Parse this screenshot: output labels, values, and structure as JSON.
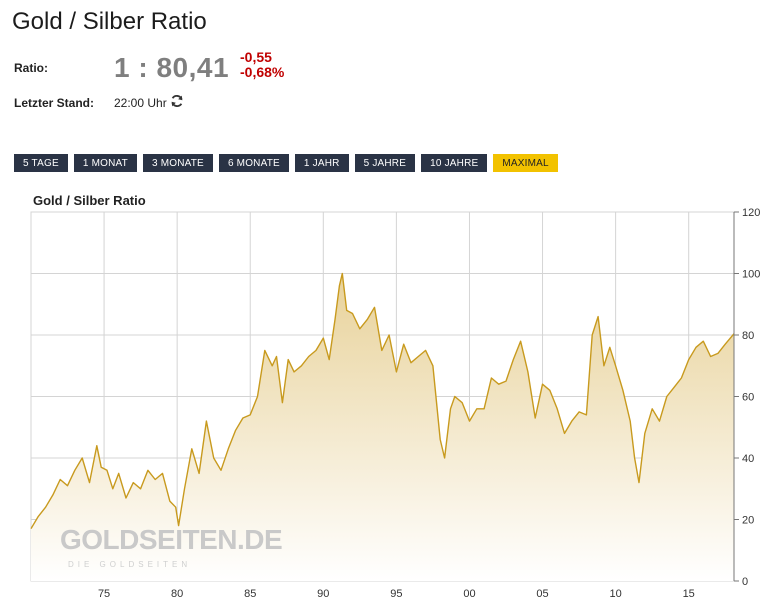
{
  "page": {
    "title": "Gold / Silber Ratio"
  },
  "quote": {
    "ratio_label": "Ratio:",
    "ratio_value": "1 : 80,41",
    "change_abs": "-0,55",
    "change_pct": "-0,68%",
    "stand_label": "Letzter Stand:",
    "stand_value": "22:00 Uhr"
  },
  "ranges": [
    {
      "label": "5 TAGE",
      "active": false
    },
    {
      "label": "1 MONAT",
      "active": false
    },
    {
      "label": "3 MONATE",
      "active": false
    },
    {
      "label": "6 MONATE",
      "active": false
    },
    {
      "label": "1 JAHR",
      "active": false
    },
    {
      "label": "5 JAHRE",
      "active": false
    },
    {
      "label": "10 JAHRE",
      "active": false
    },
    {
      "label": "MAXIMAL",
      "active": true
    }
  ],
  "colors": {
    "line": "#c89a1e",
    "fill_top": "#e8d29a",
    "fill_bottom": "#ffffff",
    "grid": "#d4d4d4",
    "button_bg": "#2a3345",
    "button_active": "#f2c200",
    "negative": "#c00000"
  },
  "watermark": {
    "brand": "GOLDSEITEN.DE",
    "tagline": "DIE GOLDSEITEN"
  },
  "chart_data": {
    "type": "area",
    "title": "Gold / Silber Ratio",
    "xlabel": "",
    "ylabel": "",
    "x_tick_labels": [
      "75",
      "80",
      "85",
      "90",
      "95",
      "00",
      "05",
      "10",
      "15"
    ],
    "x_tick_years": [
      1975,
      1980,
      1985,
      1990,
      1995,
      2000,
      2005,
      2010,
      2015
    ],
    "y_ticks": [
      0,
      20,
      40,
      60,
      80,
      100,
      120
    ],
    "xlim": [
      1970,
      2018.1
    ],
    "ylim": [
      0,
      120
    ],
    "grid": true,
    "y_axis_side": "right",
    "series": [
      {
        "x": [
          1970.0,
          1970.5,
          1971.0,
          1971.5,
          1972.0,
          1972.5,
          1973.0,
          1973.5,
          1974.0,
          1974.5,
          1974.8,
          1975.2,
          1975.6,
          1976.0,
          1976.5,
          1977.0,
          1977.5,
          1978.0,
          1978.5,
          1979.0,
          1979.5,
          1979.9,
          1980.1,
          1980.5,
          1981.0,
          1981.5,
          1982.0,
          1982.5,
          1983.0,
          1983.5,
          1984.0,
          1984.5,
          1985.0,
          1985.5,
          1986.0,
          1986.5,
          1986.8,
          1987.2,
          1987.6,
          1988.0,
          1988.5,
          1989.0,
          1989.5,
          1990.0,
          1990.4,
          1990.8,
          1991.1,
          1991.3,
          1991.6,
          1992.0,
          1992.5,
          1993.0,
          1993.5,
          1994.0,
          1994.5,
          1995.0,
          1995.5,
          1996.0,
          1996.5,
          1997.0,
          1997.5,
          1998.0,
          1998.3,
          1998.7,
          1999.0,
          1999.5,
          2000.0,
          2000.5,
          2001.0,
          2001.5,
          2002.0,
          2002.5,
          2003.0,
          2003.5,
          2004.0,
          2004.5,
          2005.0,
          2005.5,
          2006.0,
          2006.5,
          2007.0,
          2007.5,
          2008.0,
          2008.4,
          2008.8,
          2009.2,
          2009.6,
          2010.0,
          2010.5,
          2011.0,
          2011.3,
          2011.6,
          2012.0,
          2012.5,
          2013.0,
          2013.5,
          2014.0,
          2014.5,
          2015.0,
          2015.5,
          2016.0,
          2016.5,
          2017.0,
          2017.5,
          2018.1
        ],
        "values": [
          17,
          21,
          24,
          28,
          33,
          31,
          36,
          40,
          32,
          44,
          37,
          36,
          30,
          35,
          27,
          32,
          30,
          36,
          33,
          35,
          26,
          24,
          18,
          30,
          43,
          35,
          52,
          40,
          36,
          43,
          49,
          53,
          54,
          60,
          75,
          70,
          73,
          58,
          72,
          68,
          70,
          73,
          75,
          79,
          72,
          85,
          96,
          100,
          88,
          87,
          82,
          85,
          89,
          75,
          80,
          68,
          77,
          71,
          73,
          75,
          70,
          46,
          40,
          56,
          60,
          58,
          52,
          56,
          56,
          66,
          64,
          65,
          72,
          78,
          68,
          53,
          64,
          62,
          56,
          48,
          52,
          55,
          54,
          80,
          86,
          70,
          76,
          70,
          62,
          52,
          40,
          32,
          48,
          56,
          52,
          60,
          63,
          66,
          72,
          76,
          78,
          73,
          74,
          77,
          80.41
        ]
      }
    ]
  }
}
